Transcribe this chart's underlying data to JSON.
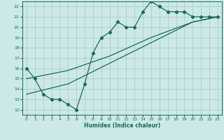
{
  "xlabel": "Humidex (Indice chaleur)",
  "xlim": [
    -0.5,
    23.5
  ],
  "ylim": [
    11.5,
    22.5
  ],
  "xticks": [
    0,
    1,
    2,
    3,
    4,
    5,
    6,
    7,
    8,
    9,
    10,
    11,
    12,
    13,
    14,
    15,
    16,
    17,
    18,
    19,
    20,
    21,
    22,
    23
  ],
  "yticks": [
    12,
    13,
    14,
    15,
    16,
    17,
    18,
    19,
    20,
    21,
    22
  ],
  "bg_color": "#cce8e8",
  "grid_color": "#aacece",
  "line_color": "#1a6b5a",
  "line1_x": [
    0,
    1,
    2,
    3,
    4,
    5,
    6,
    7,
    8,
    9,
    10,
    11,
    12,
    13,
    14,
    15,
    16,
    17,
    18,
    19,
    20,
    21,
    22,
    23
  ],
  "line1_y": [
    16,
    15,
    13.5,
    13,
    13,
    12.5,
    12,
    14.5,
    17.5,
    19,
    19.5,
    20.5,
    20,
    20,
    21.5,
    22.5,
    22,
    21.5,
    21.5,
    21.5,
    21,
    21,
    21,
    21
  ],
  "line2_x": [
    0,
    5,
    10,
    15,
    20,
    23
  ],
  "line2_y": [
    13.5,
    14.5,
    16.5,
    18.5,
    20.5,
    21
  ],
  "line3_x": [
    0,
    5,
    10,
    15,
    20,
    23
  ],
  "line3_y": [
    15.0,
    15.8,
    17.2,
    19.0,
    20.5,
    21.0
  ]
}
